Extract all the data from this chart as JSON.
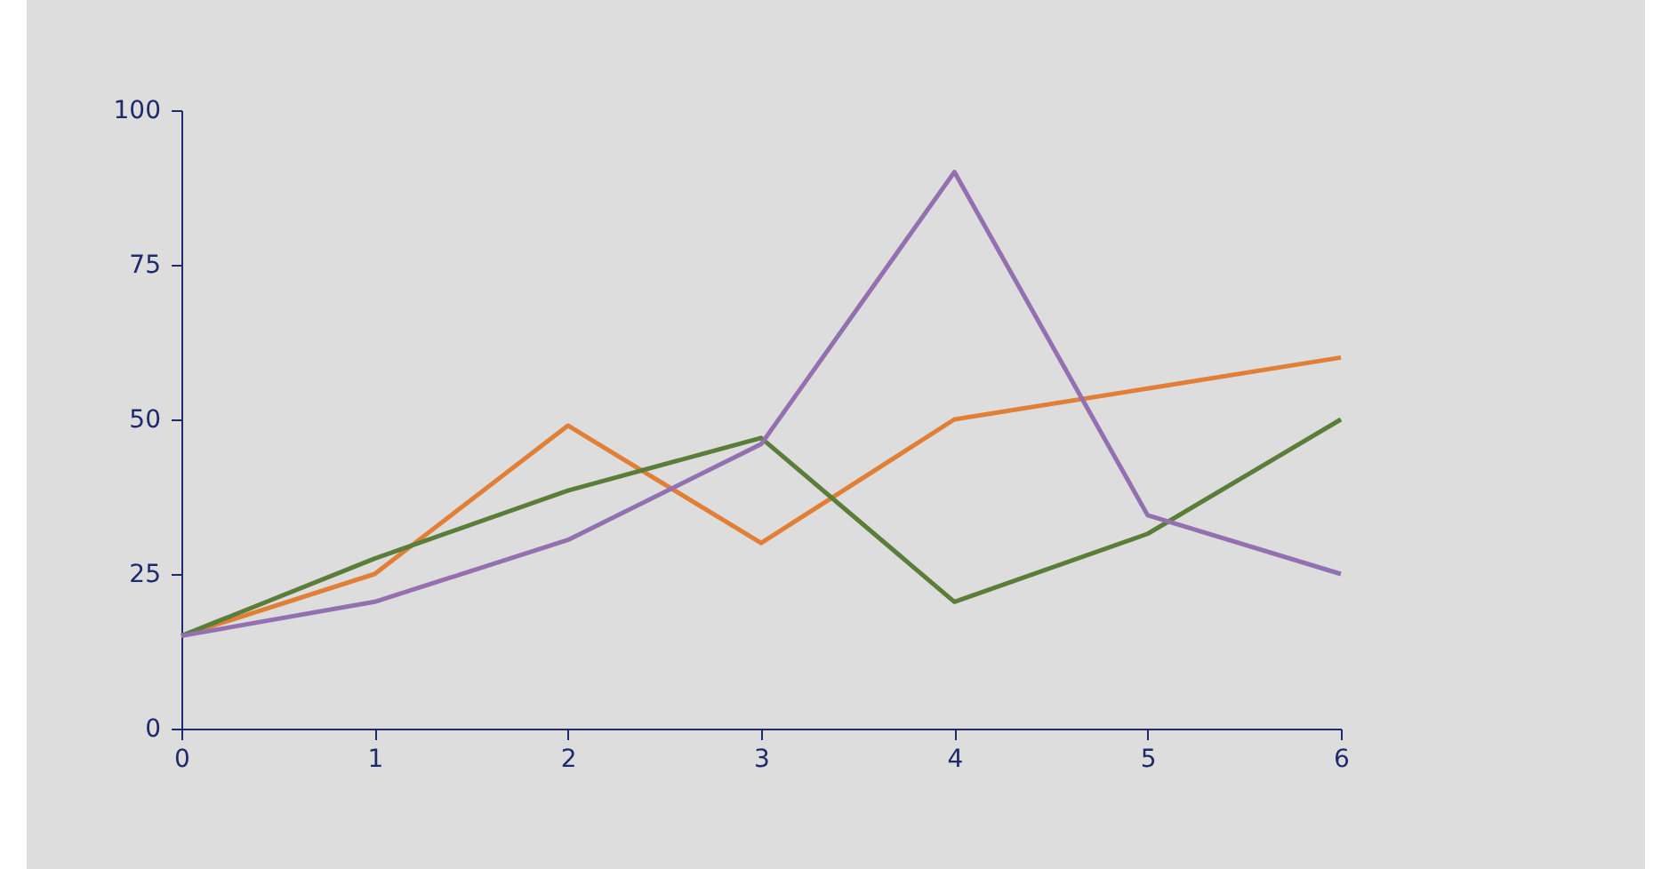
{
  "chart_data": {
    "type": "line",
    "x": [
      0,
      1,
      2,
      3,
      4,
      5,
      6
    ],
    "series": [
      {
        "color": "#e07f35",
        "values": [
          15,
          25,
          49,
          30,
          50,
          55,
          60
        ]
      },
      {
        "color": "#5a7d3a",
        "values": [
          15,
          27.5,
          38.5,
          47,
          20.5,
          31.5,
          50
        ]
      },
      {
        "color": "#9370b0",
        "values": [
          15,
          20.5,
          30.5,
          46,
          90,
          34.5,
          25
        ]
      }
    ],
    "xlim": [
      0,
      6
    ],
    "xticks": [
      0,
      1,
      2,
      3,
      4,
      5,
      6
    ],
    "ylim": [
      0,
      100
    ],
    "yticks": [
      0,
      25,
      50,
      75,
      100
    ],
    "marker": "none",
    "line_style": "solid"
  }
}
